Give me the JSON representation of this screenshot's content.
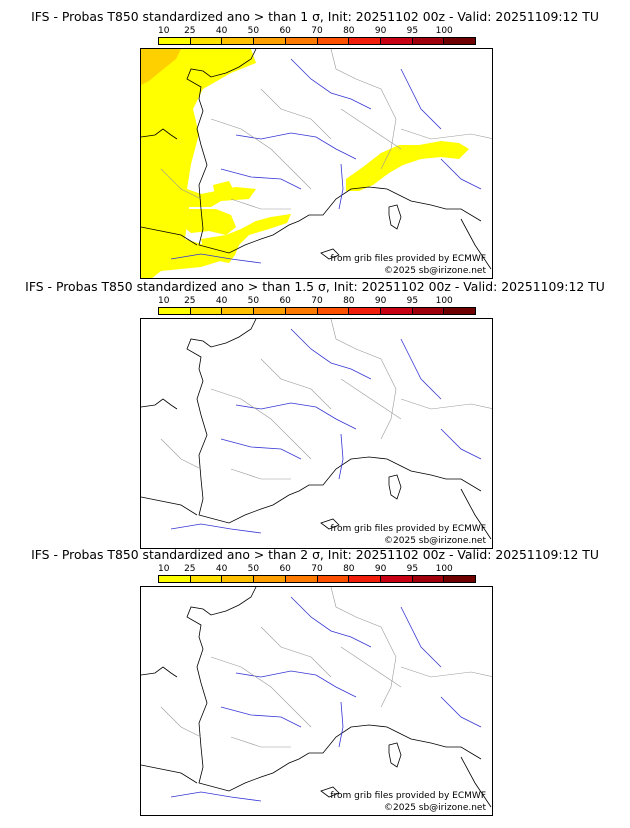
{
  "colorbar": {
    "ticks": [
      "10",
      "25",
      "40",
      "50",
      "60",
      "70",
      "80",
      "90",
      "95",
      "100"
    ],
    "colors": [
      "#ffff00",
      "#ffe200",
      "#ffc000",
      "#ff9f00",
      "#ff7a00",
      "#ff5000",
      "#f01e0a",
      "#c80014",
      "#a0000c",
      "#6e0000"
    ]
  },
  "panels": [
    {
      "title": "IFS - Probas T850  standardized ano > than 1 σ, Init: 20251102 00z - Valid: 20251109:12 TU",
      "grib_credit": "from grib files provided by ECMWF",
      "copyright": "©2025 sb@irizone.net",
      "probability_fill": "#ffff00",
      "probability_high_fill": "#ffd000"
    },
    {
      "title": "IFS - Probas T850  standardized ano > than 1.5 σ, Init: 20251102 00z - Valid: 20251109:12 TU",
      "grib_credit": "from grib files provided by ECMWF",
      "copyright": "©2025 sb@irizone.net"
    },
    {
      "title": "IFS - Probas T850  standardized ano > than 2 σ, Init: 20251102 00z - Valid: 20251109:12 TU",
      "grib_credit": "from grib files provided by ECMWF",
      "copyright": "©2025 sb@irizone.net"
    }
  ]
}
